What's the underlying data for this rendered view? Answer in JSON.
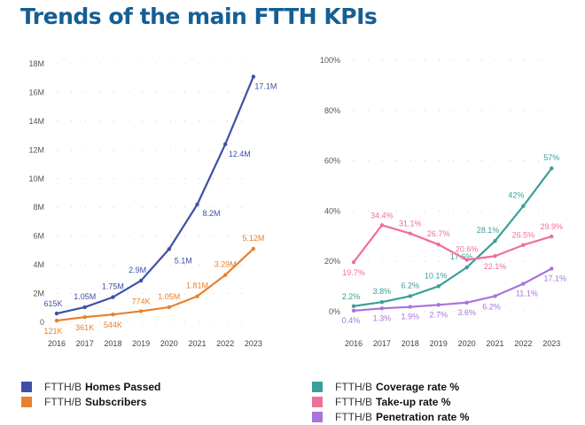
{
  "title": "Trends of the main FTTH KPIs",
  "chart_data": [
    {
      "type": "line",
      "categories": [
        "2016",
        "2017",
        "2018",
        "2019",
        "2020",
        "2021",
        "2022",
        "2023"
      ],
      "ylim": [
        0,
        18
      ],
      "yticks": [
        0,
        2,
        4,
        6,
        8,
        10,
        12,
        14,
        16,
        18
      ],
      "ytick_labels": [
        "0",
        "2M",
        "4M",
        "6M",
        "8M",
        "10M",
        "12M",
        "14M",
        "16M",
        "18M"
      ],
      "grid": "dotted",
      "legend_position": "bottom",
      "series": [
        {
          "name_prefix": "FTTH/B",
          "name": "Homes Passed",
          "color": "#3f4fa8",
          "values": [
            0.615,
            1.05,
            1.75,
            2.9,
            5.1,
            8.2,
            12.4,
            17.1
          ],
          "labels": [
            "615K",
            "1.05M",
            "1.75M",
            "2.9M",
            "5.1M",
            "8.2M",
            "12.4M",
            "17.1M"
          ]
        },
        {
          "name_prefix": "FTTH/B",
          "name": "Subscribers",
          "color": "#e8812f",
          "values": [
            0.121,
            0.361,
            0.544,
            0.774,
            1.05,
            1.81,
            3.29,
            5.12
          ],
          "labels": [
            "121K",
            "361K",
            "544K",
            "774K",
            "1.05M",
            "1.81M",
            "3.29M",
            "5.12M"
          ]
        }
      ]
    },
    {
      "type": "line",
      "categories": [
        "2016",
        "2017",
        "2018",
        "2019",
        "2020",
        "2021",
        "2022",
        "2023"
      ],
      "ylim": [
        0,
        100
      ],
      "yticks": [
        0,
        20,
        40,
        60,
        80,
        100
      ],
      "ytick_labels": [
        "0%",
        "20%",
        "40%",
        "60%",
        "80%",
        "100%"
      ],
      "grid": "dotted",
      "legend_position": "bottom",
      "series": [
        {
          "name_prefix": "FTTH/B",
          "name": "Coverage rate %",
          "color": "#3a9f9a",
          "values": [
            2.2,
            3.8,
            6.2,
            10.1,
            17.6,
            28.1,
            42,
            57
          ],
          "labels": [
            "2.2%",
            "3.8%",
            "6.2%",
            "10.1%",
            "17.6%",
            "28.1%",
            "42%",
            "57%"
          ]
        },
        {
          "name_prefix": "FTTH/B",
          "name": "Take-up rate %",
          "color": "#ee6f9a",
          "values": [
            19.7,
            34.4,
            31.1,
            26.7,
            20.6,
            22.1,
            26.5,
            29.9
          ],
          "labels": [
            "19.7%",
            "34.4%",
            "31.1%",
            "26.7%",
            "20.6%",
            "22.1%",
            "26.5%",
            "29.9%"
          ]
        },
        {
          "name_prefix": "FTTH/B",
          "name": "Penetration rate %",
          "color": "#a874da",
          "values": [
            0.4,
            1.3,
            1.9,
            2.7,
            3.6,
            6.2,
            11.1,
            17.1
          ],
          "labels": [
            "0.4%",
            "1.3%",
            "1.9%",
            "2.7%",
            "3.6%",
            "6.2%",
            "11.1%",
            "17.1%"
          ]
        }
      ]
    }
  ]
}
